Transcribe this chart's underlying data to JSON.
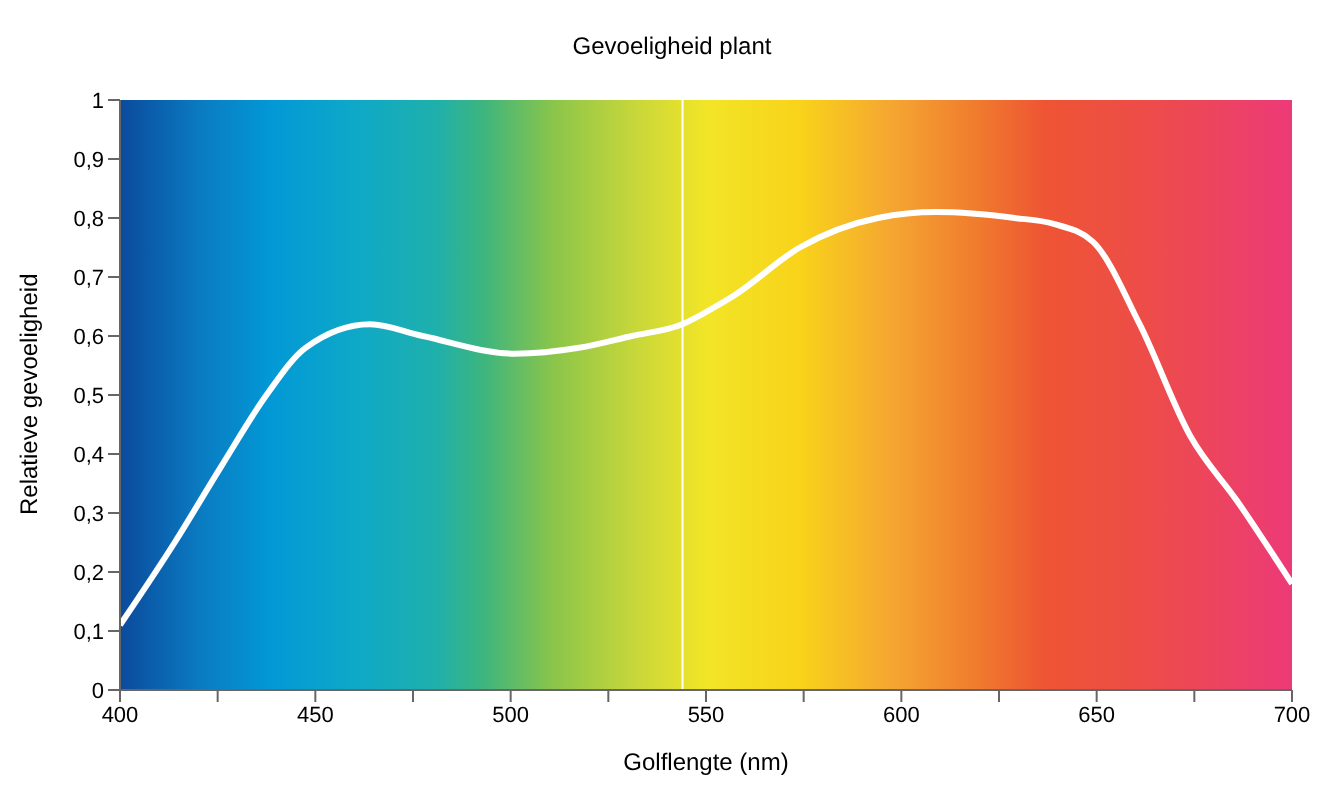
{
  "chart_data": {
    "type": "line",
    "title": "Gevoeligheid plant",
    "xlabel": "Golflengte (nm)",
    "ylabel": "Relatieve gevoeligheid",
    "x": [
      400,
      414,
      426,
      437.5,
      447.5,
      464,
      477.5,
      501,
      517.5,
      531,
      544,
      552.5,
      557.5,
      574,
      594,
      609,
      629,
      639,
      649,
      661,
      674,
      686,
      700
    ],
    "series": [
      {
        "color": "#ffffff",
        "values": [
          0.11,
          0.25,
          0.38,
          0.5,
          0.58,
          0.62,
          0.6,
          0.57,
          0.58,
          0.6,
          0.62,
          0.65,
          0.67,
          0.75,
          0.8,
          0.81,
          0.8,
          0.79,
          0.76,
          0.62,
          0.43,
          0.32,
          0.18
        ]
      }
    ],
    "xlim": [
      400,
      700
    ],
    "xticks": [
      400,
      {
        "value": 425,
        "label": null
      },
      450,
      {
        "value": 475,
        "label": null
      },
      500,
      {
        "value": 525,
        "label": null
      },
      550,
      {
        "value": 575,
        "label": null
      },
      600,
      {
        "value": 625,
        "label": null
      },
      650,
      {
        "value": 675,
        "label": null
      },
      700
    ],
    "ylim": [
      0,
      1
    ],
    "yticks": [
      0,
      {
        "value": 0.1,
        "label": "0,1"
      },
      {
        "value": 0.2,
        "label": "0,2"
      },
      {
        "value": 0.3,
        "label": "0,3"
      },
      {
        "value": 0.4,
        "label": "0,4"
      },
      {
        "value": 0.5,
        "label": "0,5"
      },
      {
        "value": 0.6,
        "label": "0,6"
      },
      {
        "value": 0.7,
        "label": "0,7"
      },
      {
        "value": 0.8,
        "label": "0,8"
      },
      {
        "value": 0.9,
        "label": "0,9"
      },
      1
    ],
    "ref_lines": [
      {
        "axis": "x",
        "value": 544,
        "color": "#ffffff"
      }
    ],
    "grid": false,
    "legend": false,
    "marker": "none",
    "line_style": "solid"
  }
}
